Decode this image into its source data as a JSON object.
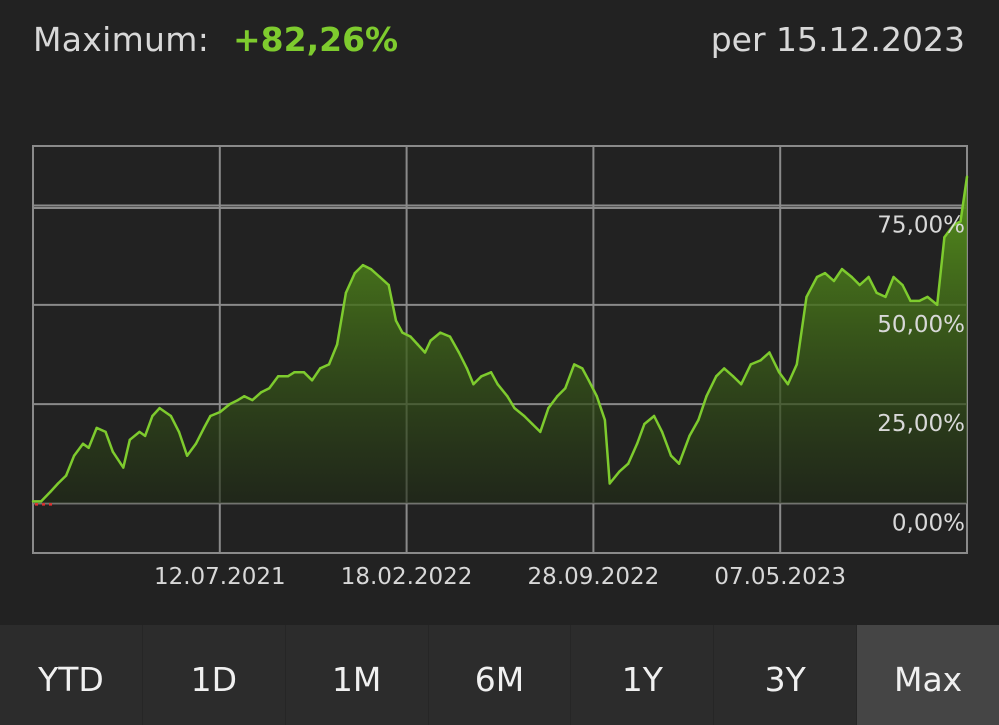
{
  "header": {
    "label": "Maximum:",
    "value": "+82,26%",
    "date": "per 15.12.2023"
  },
  "colors": {
    "background": "#222222",
    "line": "#7ecb2e",
    "fill_top": "#5a9a1c",
    "grid": "#8a8a8a",
    "text": "#d8d8d8",
    "tab_bg": "#2c2c2c",
    "tab_active_bg": "#454545",
    "start_marker": "#e03030"
  },
  "chart_data": {
    "type": "area",
    "xlabel": "",
    "ylabel": "",
    "grid": true,
    "x_tick_labels": [
      "12.07.2021",
      "18.02.2022",
      "28.09.2022",
      "07.05.2023"
    ],
    "y_tick_labels": [
      "0,00%",
      "25,00%",
      "50,00%",
      "75,00%"
    ],
    "yticks": [
      0,
      25,
      50,
      75
    ],
    "xlim": [
      "2020-10-13",
      "2023-12-15"
    ],
    "ylim": [
      -12.5,
      90
    ],
    "series": [
      {
        "x": [
          "2020-10-13",
          "2020-10-23",
          "2020-11-04",
          "2020-11-13",
          "2020-11-23",
          "2020-12-03",
          "2020-12-14",
          "2020-12-21",
          "2020-12-31",
          "2021-01-11",
          "2021-01-20",
          "2021-02-02",
          "2021-02-10",
          "2021-02-22",
          "2021-03-01",
          "2021-03-10",
          "2021-03-19",
          "2021-04-02",
          "2021-04-12",
          "2021-04-22",
          "2021-05-03",
          "2021-05-13",
          "2021-05-21",
          "2021-06-02",
          "2021-06-14",
          "2021-06-24",
          "2021-07-02",
          "2021-07-12",
          "2021-07-23",
          "2021-08-02",
          "2021-08-13",
          "2021-08-25",
          "2021-09-02",
          "2021-09-14",
          "2021-09-24",
          "2021-10-04",
          "2021-10-15",
          "2021-10-25",
          "2021-11-05",
          "2021-11-16",
          "2021-11-26",
          "2021-12-06",
          "2021-12-17",
          "2021-12-28",
          "2022-01-06",
          "2022-01-14",
          "2022-01-24",
          "2022-02-02",
          "2022-02-11",
          "2022-02-18",
          "2022-03-02",
          "2022-03-14",
          "2022-03-25",
          "2022-04-04",
          "2022-04-12",
          "2022-04-22",
          "2022-05-04",
          "2022-05-12",
          "2022-05-24",
          "2022-06-02",
          "2022-06-14",
          "2022-06-24",
          "2022-07-04",
          "2022-07-14",
          "2022-07-25",
          "2022-08-04",
          "2022-08-15",
          "2022-08-25",
          "2022-09-02",
          "2022-09-12",
          "2022-09-22",
          "2022-09-28",
          "2022-10-10",
          "2022-10-21",
          "2022-11-01",
          "2022-11-10",
          "2022-11-22",
          "2022-12-02",
          "2022-12-13",
          "2022-12-23",
          "2023-01-05",
          "2023-01-16",
          "2023-01-26",
          "2023-02-07",
          "2023-02-17",
          "2023-02-28",
          "2023-03-10",
          "2023-03-22",
          "2023-04-03",
          "2023-04-14",
          "2023-04-26",
          "2023-05-07",
          "2023-05-18",
          "2023-05-30",
          "2023-06-12",
          "2023-06-22",
          "2023-07-03",
          "2023-07-13",
          "2023-07-25",
          "2023-08-04",
          "2023-08-15",
          "2023-08-25",
          "2023-09-05",
          "2023-09-15",
          "2023-09-26",
          "2023-10-06",
          "2023-10-17",
          "2023-10-27",
          "2023-11-08",
          "2023-11-17",
          "2023-11-28",
          "2023-12-07",
          "2023-12-15"
        ],
        "values": [
          0.5,
          0.5,
          3,
          5,
          7,
          12,
          15,
          14,
          19,
          18,
          13,
          9,
          16,
          18,
          17,
          22,
          24,
          22,
          18,
          12,
          15,
          19,
          22,
          23,
          25,
          26,
          27,
          26,
          28,
          29,
          32,
          32,
          33,
          33,
          31,
          34,
          35,
          40,
          53,
          58,
          60,
          59,
          57,
          55,
          46,
          43,
          42,
          40,
          38,
          41,
          43,
          42,
          38,
          34,
          30,
          32,
          33,
          30,
          27,
          24,
          22,
          20,
          18,
          24,
          27,
          29,
          35,
          34,
          31,
          27,
          21,
          5,
          8,
          10,
          15,
          20,
          22,
          18,
          12,
          10,
          17,
          21,
          27,
          32,
          34,
          32,
          30,
          35,
          36,
          38,
          33,
          30,
          35,
          52,
          57,
          58,
          56,
          59,
          57,
          55,
          57,
          53,
          52,
          57,
          55,
          51,
          51,
          52,
          50,
          67,
          70,
          71,
          82.26
        ]
      }
    ]
  },
  "tabs": [
    {
      "label": "YTD",
      "active": false
    },
    {
      "label": "1D",
      "active": false
    },
    {
      "label": "1M",
      "active": false
    },
    {
      "label": "6M",
      "active": false
    },
    {
      "label": "1Y",
      "active": false
    },
    {
      "label": "3Y",
      "active": false
    },
    {
      "label": "Max",
      "active": true
    }
  ]
}
